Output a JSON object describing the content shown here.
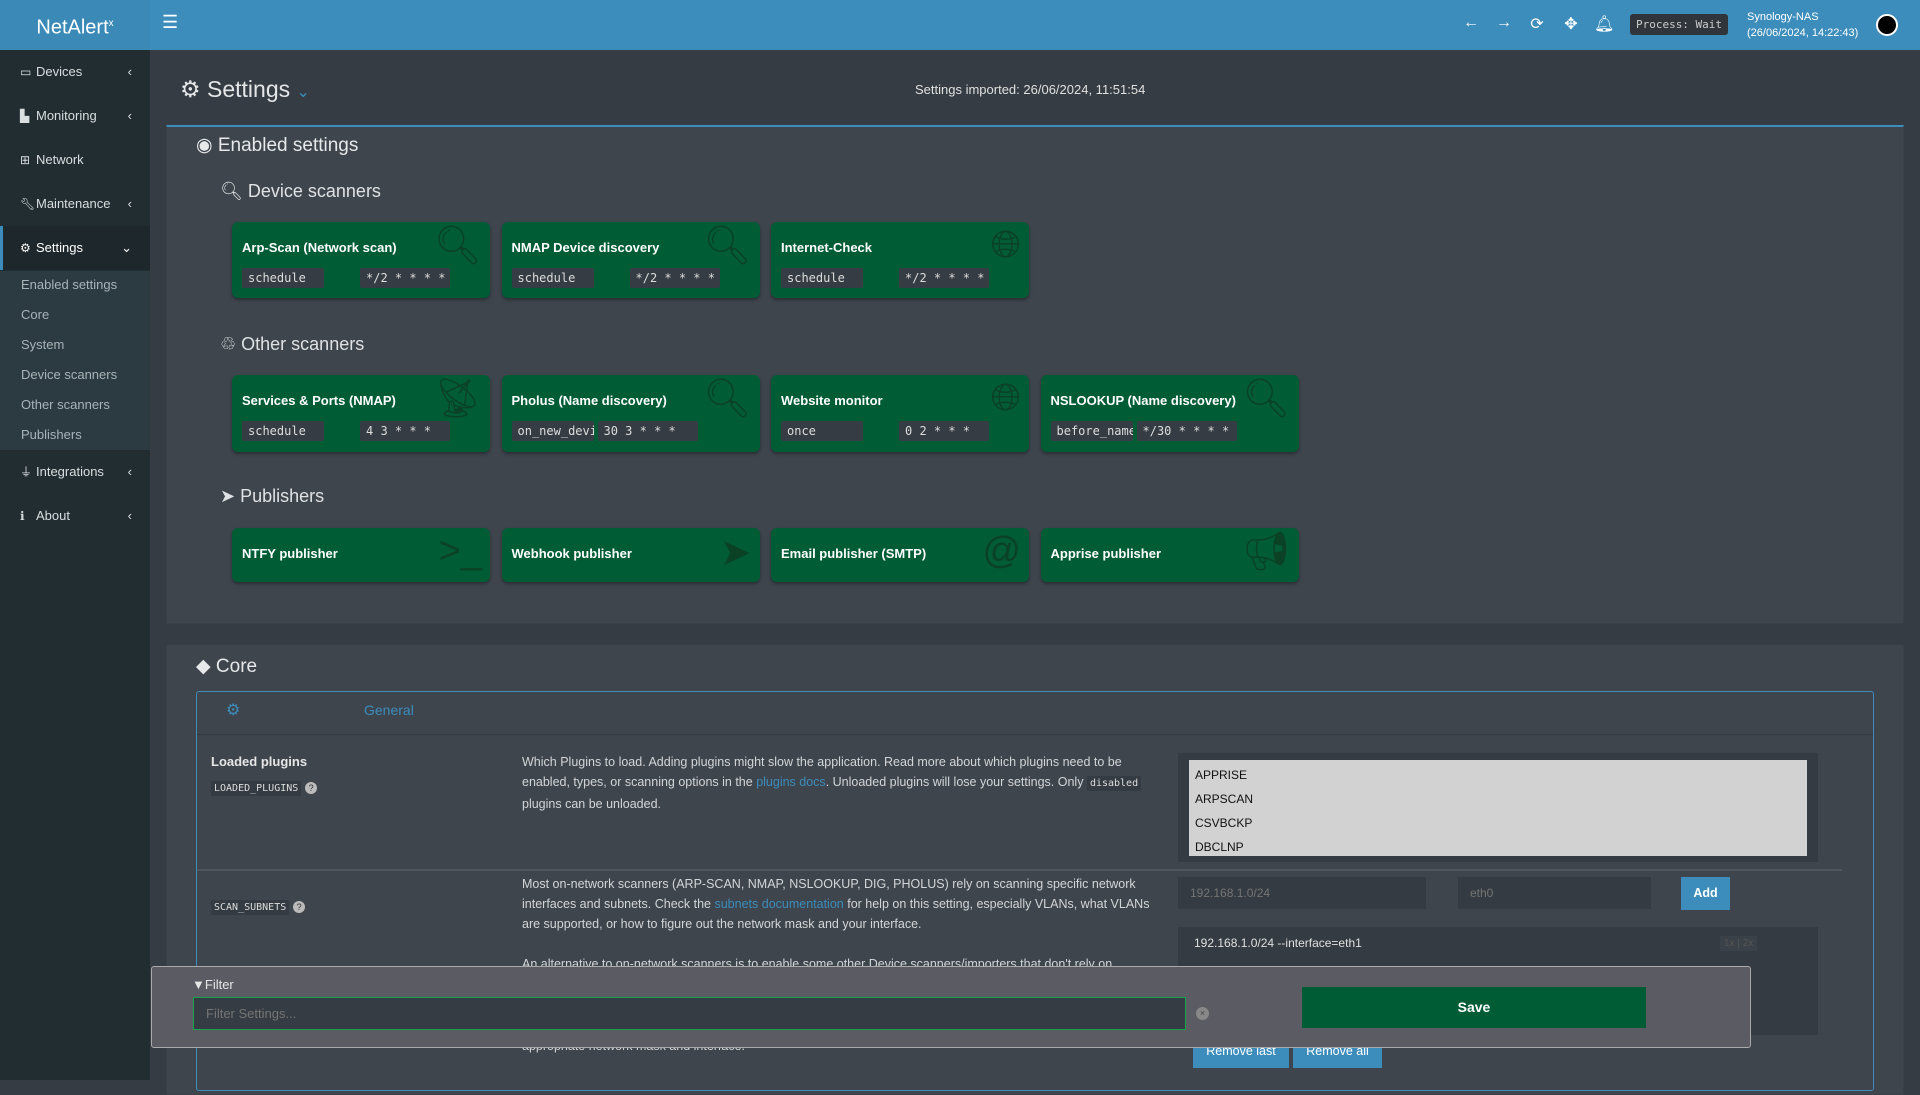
{
  "header": {
    "app_name": "NetAlert",
    "app_sup": "x",
    "process": "Process: Wait",
    "host": "Synology-NAS",
    "datetime": "(26/06/2024, 14:22:43)",
    "icons": [
      "arrow-left-icon",
      "arrow-right-icon",
      "refresh-icon",
      "move-icon",
      "bell-icon"
    ]
  },
  "sidebar": {
    "items": [
      {
        "label": "Devices",
        "icon": "laptop-icon"
      },
      {
        "label": "Monitoring",
        "icon": "chart-icon"
      },
      {
        "label": "Network",
        "icon": "network-icon"
      },
      {
        "label": "Maintenance",
        "icon": "wrench-icon"
      },
      {
        "label": "Settings",
        "icon": "gear-icon"
      },
      {
        "label": "Integrations",
        "icon": "plug-icon"
      },
      {
        "label": "About",
        "icon": "info-icon"
      }
    ],
    "submenu": [
      "Enabled settings",
      "Core",
      "System",
      "Device scanners",
      "Other scanners",
      "Publishers"
    ]
  },
  "page": {
    "title": "Settings",
    "imported": "Settings imported: 26/06/2024, 11:51:54"
  },
  "enabled": {
    "title": "Enabled settings",
    "device_scanners": {
      "title": "Device scanners",
      "cards": [
        {
          "name": "Arp-Scan (Network scan)",
          "mode": "schedule",
          "cron": "*/2 * * * *",
          "icon": "search-icon"
        },
        {
          "name": "NMAP Device discovery",
          "mode": "schedule",
          "cron": "*/2 * * * *",
          "icon": "search-icon"
        },
        {
          "name": "Internet-Check",
          "mode": "schedule",
          "cron": "*/2 * * * *",
          "icon": "globe-icon"
        }
      ]
    },
    "other_scanners": {
      "title": "Other scanners",
      "cards": [
        {
          "name": "Services & Ports (NMAP)",
          "mode": "schedule",
          "cron": "4 3 * * *",
          "icon": "satellite-icon"
        },
        {
          "name": "Pholus (Name discovery)",
          "mode": "on_new_device",
          "cron": "30 3 * * *",
          "icon": "search-icon"
        },
        {
          "name": "Website monitor",
          "mode": "once",
          "cron": "0 2 * * *",
          "icon": "globe-icon"
        },
        {
          "name": "NSLOOKUP (Name discovery)",
          "mode": "before_name_updates",
          "cron": "*/30 * * * *",
          "icon": "search-icon"
        }
      ]
    },
    "publishers": {
      "title": "Publishers",
      "cards": [
        {
          "name": "NTFY publisher",
          "icon": "terminal-icon"
        },
        {
          "name": "Webhook publisher",
          "icon": "paper-plane-icon"
        },
        {
          "name": "Email publisher (SMTP)",
          "icon": "at-icon"
        },
        {
          "name": "Apprise publisher",
          "icon": "bullhorn-icon"
        }
      ]
    }
  },
  "core": {
    "title": "Core",
    "tab": "General",
    "loaded_plugins": {
      "label": "Loaded plugins",
      "code": "LOADED_PLUGINS",
      "desc_1": "Which Plugins to load. Adding plugins might slow the application. Read more about which plugins need to be enabled, types, or scanning options in the ",
      "link": "plugins docs",
      "desc_2": ". Unloaded plugins will lose your settings. Only ",
      "code2": "disabled",
      "desc_3": " plugins can be unloaded.",
      "options": [
        "APPRISE",
        "ARPSCAN",
        "CSVBCKP",
        "DBCLNP"
      ]
    },
    "scan_subnets": {
      "code": "SCAN_SUBNETS",
      "desc_1": "Most on-network scanners (ARP-SCAN, NMAP, NSLOOKUP, DIG, PHOLUS) rely on scanning specific network interfaces and subnets. Check the ",
      "link": "subnets documentation",
      "desc_2": " for help on this setting, especially VLANs, what VLANs are supported, or how to figure out the network mask and your interface.",
      "desc_more": "An alternative to on-network scanners is to enable some other Device scanners/importers that don't rely on",
      "desc_tail": "appropriate network mask and interface.",
      "subnet_placeholder": "192.168.1.0/24",
      "iface_placeholder": "eth0",
      "add": "Add",
      "entries": [
        "192.168.1.0/24 --interface=eth1"
      ],
      "remove_last": "Remove last",
      "remove_all": "Remove all",
      "mini": "1x | 2x"
    }
  },
  "filter": {
    "label": "Filter",
    "placeholder": "Filter Settings...",
    "save": "Save"
  }
}
